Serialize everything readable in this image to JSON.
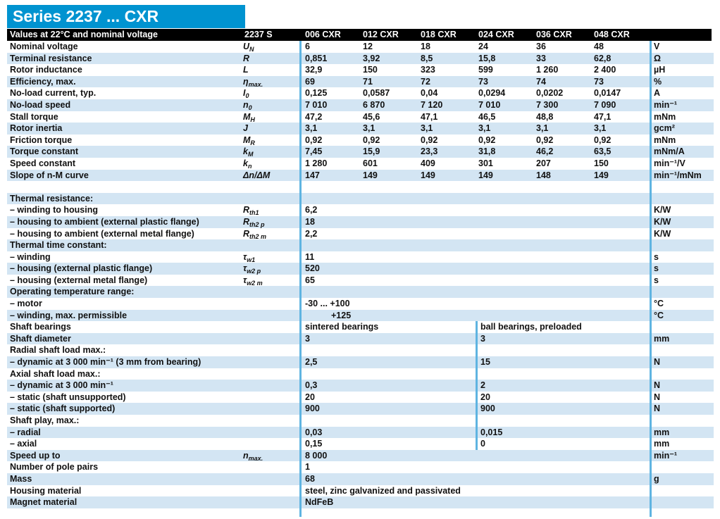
{
  "title": "Series 2237 ... CXR",
  "header": {
    "label": "Values at 22°C and nominal voltage",
    "series_label": "2237 S",
    "columns": [
      "006 CXR",
      "012 CXR",
      "018 CXR",
      "024 CXR",
      "036 CXR",
      "048 CXR"
    ]
  },
  "colors": {
    "title_bar_blue": "#0093d0",
    "header_bar_black": "#000000",
    "row_stripe_blue": "#d3e5f3",
    "divider_blue": "#5fb4e1",
    "text": "#111111"
  },
  "table": {
    "rows": [
      {
        "type": "data",
        "label": "Nominal voltage",
        "symbol": [
          {
            "t": "U"
          },
          {
            "t": "N",
            "sub": true
          }
        ],
        "values": [
          "6",
          "12",
          "18",
          "24",
          "36",
          "48"
        ],
        "unit": "V"
      },
      {
        "type": "data",
        "label": "Terminal resistance",
        "symbol": [
          {
            "t": "R"
          }
        ],
        "values": [
          "0,851",
          "3,92",
          "8,5",
          "15,8",
          "33",
          "62,8"
        ],
        "unit": "Ω"
      },
      {
        "type": "data",
        "label": "Rotor inductance",
        "symbol": [
          {
            "t": "L"
          }
        ],
        "values": [
          "32,9",
          "150",
          "323",
          "599",
          "1 260",
          "2 400"
        ],
        "unit": "µH"
      },
      {
        "type": "data",
        "label": "Efficiency, max.",
        "symbol": [
          {
            "t": "η"
          },
          {
            "t": "max.",
            "sub": true
          }
        ],
        "values": [
          "69",
          "71",
          "72",
          "73",
          "74",
          "73"
        ],
        "unit": "%"
      },
      {
        "type": "data",
        "label": "No-load current, typ.",
        "symbol": [
          {
            "t": "I"
          },
          {
            "t": "0",
            "sub": true
          }
        ],
        "values": [
          "0,125",
          "0,0587",
          "0,04",
          "0,0294",
          "0,0202",
          "0,0147"
        ],
        "unit": "A"
      },
      {
        "type": "data",
        "label": "No-load speed",
        "symbol": [
          {
            "t": "n"
          },
          {
            "t": "0",
            "sub": true
          }
        ],
        "values": [
          "7 010",
          "6 870",
          "7 120",
          "7 010",
          "7 300",
          "7 090"
        ],
        "unit": "min⁻¹"
      },
      {
        "type": "data",
        "label": "Stall torque",
        "symbol": [
          {
            "t": "M"
          },
          {
            "t": "H",
            "sub": true
          }
        ],
        "values": [
          "47,2",
          "45,6",
          "47,1",
          "46,5",
          "48,8",
          "47,1"
        ],
        "unit": "mNm"
      },
      {
        "type": "data",
        "label": "Rotor inertia",
        "symbol": [
          {
            "t": "J"
          }
        ],
        "values": [
          "3,1",
          "3,1",
          "3,1",
          "3,1",
          "3,1",
          "3,1"
        ],
        "unit": "gcm²"
      },
      {
        "type": "data",
        "label": "Friction torque",
        "symbol": [
          {
            "t": "M"
          },
          {
            "t": "R",
            "sub": true
          }
        ],
        "values": [
          "0,92",
          "0,92",
          "0,92",
          "0,92",
          "0,92",
          "0,92"
        ],
        "unit": "mNm"
      },
      {
        "type": "data",
        "label": "Torque constant",
        "symbol": [
          {
            "t": "k"
          },
          {
            "t": "M",
            "sub": true
          }
        ],
        "values": [
          "7,45",
          "15,9",
          "23,3",
          "31,8",
          "46,2",
          "63,5"
        ],
        "unit": "mNm/A"
      },
      {
        "type": "data",
        "label": "Speed constant",
        "symbol": [
          {
            "t": "k"
          },
          {
            "t": "n",
            "sub": true
          }
        ],
        "values": [
          "1 280",
          "601",
          "409",
          "301",
          "207",
          "150"
        ],
        "unit": "min⁻¹/V"
      },
      {
        "type": "data",
        "label": "Slope of n-M curve",
        "symbol": [
          {
            "t": "Δn/ΔM"
          }
        ],
        "values": [
          "147",
          "149",
          "149",
          "149",
          "148",
          "149"
        ],
        "unit": "min⁻¹/mNm"
      },
      {
        "type": "gap"
      },
      {
        "type": "section",
        "label": "Thermal resistance:"
      },
      {
        "type": "span",
        "label": "– winding to housing",
        "symbol": [
          {
            "t": "R"
          },
          {
            "t": "th1",
            "sub": true
          }
        ],
        "value": "6,2",
        "unit": "K/W"
      },
      {
        "type": "span",
        "label": "– housing to ambient (external plastic flange)",
        "symbol": [
          {
            "t": "R"
          },
          {
            "t": "th2 p",
            "sub": true
          }
        ],
        "value": "18",
        "unit": "K/W"
      },
      {
        "type": "span",
        "label": "– housing to ambient (external metal flange)",
        "symbol": [
          {
            "t": "R"
          },
          {
            "t": "th2 m",
            "sub": true
          }
        ],
        "value": "2,2",
        "unit": "K/W"
      },
      {
        "type": "section",
        "label": "Thermal time constant:"
      },
      {
        "type": "span",
        "label": "– winding",
        "symbol": [
          {
            "t": "τ"
          },
          {
            "t": "w1",
            "sub": true
          }
        ],
        "value": "11",
        "unit": "s"
      },
      {
        "type": "span",
        "label": "– housing (external plastic flange)",
        "symbol": [
          {
            "t": "τ"
          },
          {
            "t": "w2 p",
            "sub": true
          }
        ],
        "value": "520",
        "unit": "s"
      },
      {
        "type": "span",
        "label": "– housing (external metal flange)",
        "symbol": [
          {
            "t": "τ"
          },
          {
            "t": "w2 m",
            "sub": true
          }
        ],
        "value": "65",
        "unit": "s"
      },
      {
        "type": "section",
        "label": "Operating temperature range:"
      },
      {
        "type": "span",
        "label": "– motor",
        "value": "-30  ... +100",
        "unit": "°C"
      },
      {
        "type": "span",
        "label": "– winding, max. permissible",
        "value": "+125",
        "indent": true,
        "unit": "°C"
      },
      {
        "type": "pair",
        "label": "Shaft bearings",
        "pair": [
          "sintered bearings",
          "ball bearings, preloaded"
        ]
      },
      {
        "type": "pair",
        "label": "Shaft diameter",
        "pair": [
          "3",
          "3"
        ],
        "unit": "mm"
      },
      {
        "type": "section",
        "label": "Radial shaft load max.:"
      },
      {
        "type": "pair",
        "label": "– dynamic at 3 000 min⁻¹ (3 mm from bearing)",
        "pair": [
          "2,5",
          "15"
        ],
        "unit": "N"
      },
      {
        "type": "section",
        "label": "Axial shaft load max.:"
      },
      {
        "type": "pair",
        "label": "– dynamic at 3 000 min⁻¹",
        "pair": [
          "0,3",
          "2"
        ],
        "unit": "N"
      },
      {
        "type": "pair",
        "label": "– static (shaft unsupported)",
        "pair": [
          "20",
          "20"
        ],
        "unit": "N"
      },
      {
        "type": "pair",
        "label": "– static (shaft supported)",
        "pair": [
          "900",
          "900"
        ],
        "unit": "N"
      },
      {
        "type": "section",
        "label": "Shaft play, max.:"
      },
      {
        "type": "pair",
        "label": "– radial",
        "pair": [
          "0,03",
          "0,015"
        ],
        "unit": "mm"
      },
      {
        "type": "pair",
        "label": "– axial",
        "pair": [
          "0,15",
          "0"
        ],
        "unit": "mm"
      },
      {
        "type": "span",
        "label": "Speed up to",
        "symbol": [
          {
            "t": "n"
          },
          {
            "t": "max.",
            "sub": true
          }
        ],
        "value": "8 000",
        "unit": "min⁻¹"
      },
      {
        "type": "span",
        "label": "Number of pole pairs",
        "value": "1"
      },
      {
        "type": "span",
        "label": "Mass",
        "value": "68",
        "unit": "g"
      },
      {
        "type": "span",
        "label": "Housing material",
        "value": "steel, zinc galvanized and passivated"
      },
      {
        "type": "span",
        "label": "Magnet material",
        "value": "NdFeB"
      }
    ]
  }
}
